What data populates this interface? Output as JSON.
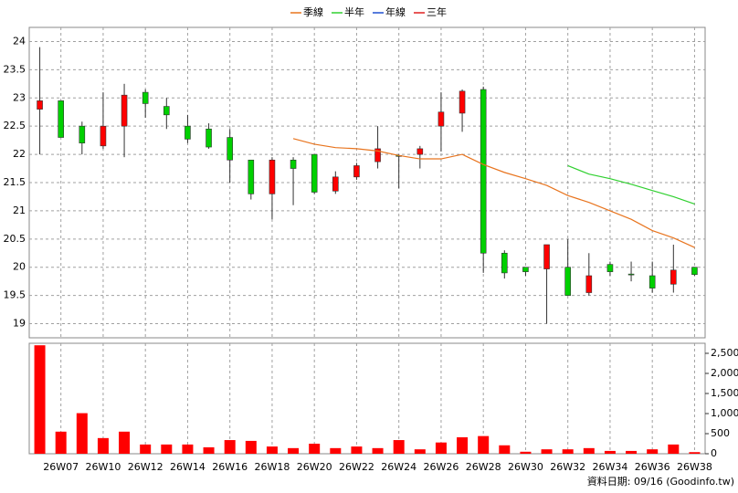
{
  "chart_data": [
    {
      "type": "candlestick",
      "categories": [
        null,
        "26W07",
        null,
        "26W10",
        null,
        "26W12",
        null,
        "26W14",
        null,
        "26W16",
        null,
        "26W18",
        null,
        "26W20",
        null,
        "26W22",
        null,
        "26W24",
        null,
        "26W26",
        null,
        "26W28",
        null,
        "26W30",
        null,
        "26W32",
        null,
        "26W34",
        null,
        "26W36",
        null,
        "26W38"
      ],
      "open": [
        22.8,
        22.95,
        22.5,
        22.15,
        22.5,
        23.1,
        22.85,
        22.5,
        22.45,
        22.3,
        21.9,
        21.3,
        21.9,
        22.0,
        21.35,
        21.6,
        21.87,
        21.98,
        22.0,
        22.5,
        22.73,
        23.15,
        20.25,
        20.0,
        19.97,
        20.0,
        19.55,
        20.05,
        19.88,
        19.85,
        19.7,
        20.0
      ],
      "high": [
        23.9,
        22.95,
        22.58,
        23.1,
        23.25,
        23.15,
        23.0,
        22.7,
        22.55,
        22.45,
        21.9,
        21.95,
        21.95,
        22.0,
        21.7,
        21.85,
        22.5,
        22.0,
        22.15,
        23.1,
        23.15,
        23.2,
        20.3,
        20.0,
        20.4,
        20.5,
        20.25,
        20.1,
        20.1,
        20.1,
        20.4,
        20.0
      ],
      "low": [
        22.0,
        22.3,
        22.0,
        22.1,
        21.95,
        22.65,
        22.45,
        22.2,
        22.1,
        21.5,
        21.2,
        20.85,
        21.1,
        21.3,
        21.3,
        21.55,
        21.75,
        21.4,
        21.75,
        22.05,
        22.4,
        19.9,
        19.8,
        19.85,
        19.0,
        19.5,
        19.5,
        19.85,
        19.75,
        19.55,
        19.55,
        19.85
      ],
      "close": [
        22.95,
        22.3,
        22.2,
        22.5,
        23.05,
        22.9,
        22.7,
        22.27,
        22.13,
        21.9,
        21.3,
        21.9,
        21.75,
        21.33,
        21.6,
        21.8,
        22.1,
        21.97,
        22.1,
        22.75,
        23.12,
        20.25,
        19.9,
        19.92,
        20.4,
        19.5,
        19.85,
        19.92,
        19.87,
        19.63,
        19.95,
        19.87
      ],
      "up_color": "#ff0000",
      "down_color": "#00d000",
      "series": [
        {
          "name": "季線",
          "color": "#e8741e",
          "values": [
            null,
            null,
            null,
            null,
            null,
            null,
            null,
            null,
            null,
            null,
            null,
            null,
            22.28,
            22.18,
            22.12,
            22.1,
            22.06,
            21.98,
            21.92,
            21.92,
            22.0,
            21.82,
            21.68,
            21.57,
            21.45,
            21.27,
            21.15,
            21.0,
            20.85,
            20.65,
            20.52,
            20.35
          ]
        },
        {
          "name": "半年",
          "color": "#30d030",
          "values": [
            null,
            null,
            null,
            null,
            null,
            null,
            null,
            null,
            null,
            null,
            null,
            null,
            null,
            null,
            null,
            null,
            null,
            null,
            null,
            null,
            null,
            null,
            null,
            null,
            null,
            21.8,
            21.65,
            21.57,
            21.47,
            21.36,
            21.25,
            21.12
          ]
        },
        {
          "name": "年線",
          "color": "#2050d0",
          "values": [
            null,
            null,
            null,
            null,
            null,
            null,
            null,
            null,
            null,
            null,
            null,
            null,
            null,
            null,
            null,
            null,
            null,
            null,
            null,
            null,
            null,
            null,
            null,
            null,
            null,
            null,
            null,
            null,
            null,
            null,
            null,
            null
          ]
        },
        {
          "name": "三年",
          "color": "#e02020",
          "values": [
            null,
            null,
            null,
            null,
            null,
            null,
            null,
            null,
            null,
            null,
            null,
            null,
            null,
            null,
            null,
            null,
            null,
            null,
            null,
            null,
            null,
            null,
            null,
            null,
            null,
            null,
            null,
            null,
            null,
            null,
            null,
            null
          ]
        }
      ],
      "ylim": [
        18.75,
        24.25
      ],
      "yticks": [
        19,
        19.5,
        20,
        20.5,
        21,
        21.5,
        22,
        22.5,
        23,
        23.5,
        24
      ],
      "grid": true
    },
    {
      "type": "bar",
      "values": [
        2700,
        550,
        1010,
        390,
        550,
        230,
        230,
        230,
        160,
        340,
        320,
        180,
        140,
        250,
        140,
        180,
        140,
        340,
        110,
        280,
        410,
        440,
        210,
        50,
        110,
        110,
        140,
        70,
        70,
        110,
        230,
        40
      ],
      "color": "#ff0000",
      "ylim": [
        0,
        2750
      ],
      "yticks": [
        0,
        500,
        {
          "value": 1000,
          "label": "1,000"
        },
        {
          "value": 1500,
          "label": "1,500"
        },
        {
          "value": 2000,
          "label": "2,000"
        },
        {
          "value": 2500,
          "label": "2,500"
        }
      ]
    }
  ],
  "footer": "資料日期: 09/16 (Goodinfo.tw)"
}
